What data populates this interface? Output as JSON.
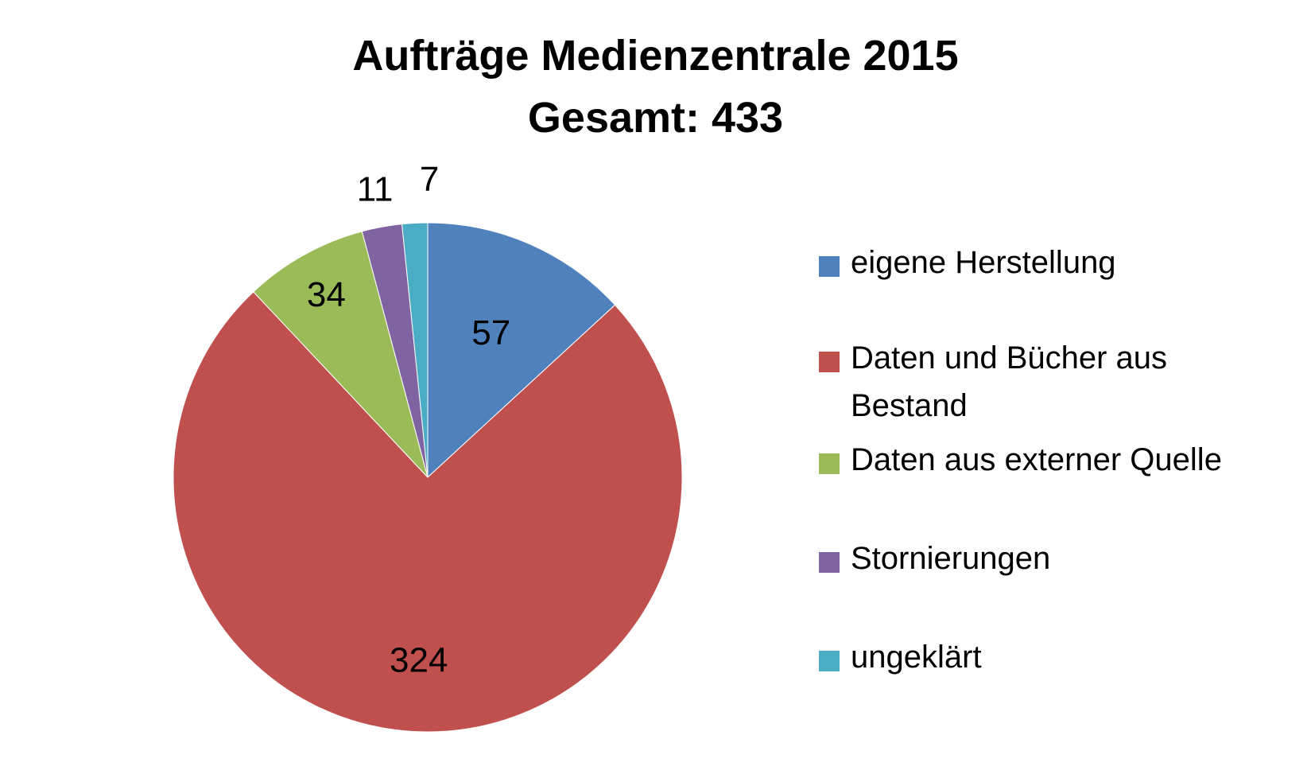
{
  "chart_data": {
    "type": "pie",
    "title": "Aufträge Medienzentrale 2015",
    "subtitle": "Gesamt: 433",
    "categories": [
      "eigene Herstellung",
      "Daten und Bücher aus Bestand",
      "Daten aus externer Quelle",
      "Stornierungen",
      "ungeklärt"
    ],
    "values": [
      57,
      324,
      34,
      11,
      7
    ],
    "data_labels": [
      "57",
      "324",
      "34",
      "11",
      "7"
    ],
    "colors": [
      "#4F81BD",
      "#C0504D",
      "#9BBB59",
      "#8064A2",
      "#4BACC6"
    ],
    "legend_position": "right",
    "start_angle": "12 o'clock",
    "direction": "clockwise"
  }
}
